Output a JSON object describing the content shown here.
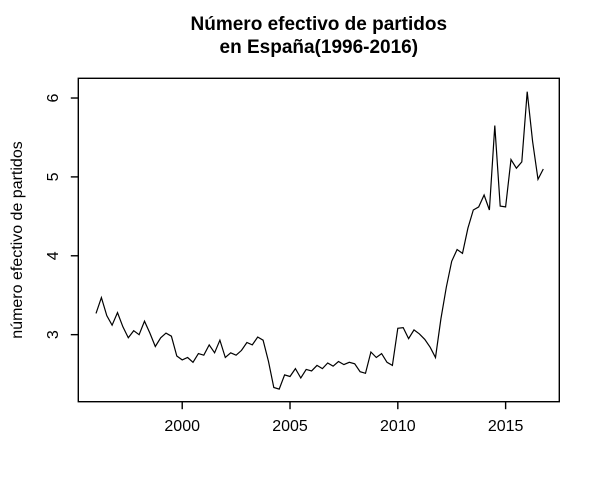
{
  "figure": {
    "title_line1": "Número efectivo de partidos",
    "title_line2": "en España(1996-2016)",
    "y_axis_title": "número efectivo de partidos",
    "x_axis_title": ""
  },
  "chart_data": {
    "type": "line",
    "title": "Número efectivo de partidos en España(1996-2016)",
    "xlabel": "",
    "ylabel": "número efectivo de partidos",
    "series_name": "número efectivo de partidos",
    "x_start": 1996.0,
    "x_step": 0.25,
    "x_end": 2016.75,
    "values": [
      3.27,
      3.47,
      3.24,
      3.12,
      3.28,
      3.1,
      2.96,
      3.05,
      3.0,
      3.17,
      3.02,
      2.85,
      2.96,
      3.02,
      2.98,
      2.73,
      2.68,
      2.71,
      2.65,
      2.76,
      2.74,
      2.87,
      2.77,
      2.93,
      2.71,
      2.77,
      2.74,
      2.8,
      2.9,
      2.87,
      2.97,
      2.93,
      2.66,
      2.33,
      2.31,
      2.49,
      2.47,
      2.57,
      2.45,
      2.56,
      2.54,
      2.61,
      2.57,
      2.64,
      2.6,
      2.66,
      2.62,
      2.65,
      2.63,
      2.53,
      2.51,
      2.78,
      2.71,
      2.76,
      2.65,
      2.61,
      3.08,
      3.09,
      2.95,
      3.06,
      3.01,
      2.94,
      2.84,
      2.71,
      3.2,
      3.6,
      3.93,
      4.08,
      4.03,
      4.35,
      4.58,
      4.62,
      4.77,
      4.58,
      5.65,
      4.63,
      4.62,
      5.22,
      5.11,
      5.19,
      6.08,
      5.45,
      4.97,
      5.1
    ],
    "x_tick_values": [
      2000,
      2005,
      2010,
      2015
    ],
    "x_tick_labels": [
      "2000",
      "2005",
      "2010",
      "2015"
    ],
    "y_tick_values": [
      3,
      4,
      5,
      6
    ],
    "y_tick_labels": [
      "3",
      "4",
      "5",
      "6"
    ],
    "xlim": [
      1995.18,
      2017.49
    ],
    "ylim": [
      2.15,
      6.25
    ],
    "grid": false,
    "legend_position": null,
    "line_color": "#000000",
    "background_color": "#ffffff"
  }
}
